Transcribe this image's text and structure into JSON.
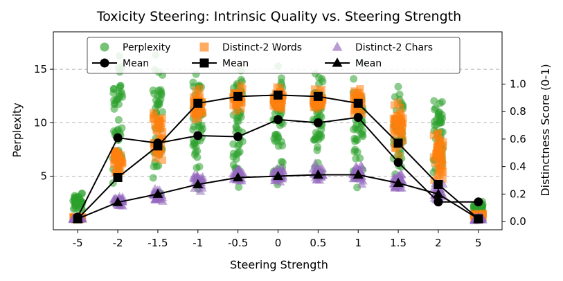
{
  "chart_data": {
    "type": "scatter",
    "title": "Toxicity Steering: Intrinsic Quality vs. Steering Strength",
    "xlabel": "Steering Strength",
    "ylabel_left": "Perplexity",
    "ylabel_right": "Distinctness Score (0-1)",
    "categories": [
      "-5",
      "-2",
      "-1.5",
      "-1",
      "-0.5",
      "0",
      "0.5",
      "1",
      "1.5",
      "2",
      "5"
    ],
    "ylim_left": [
      0,
      18.5
    ],
    "yticks_left": [
      5,
      10,
      15
    ],
    "ylim_right": [
      -0.06,
      1.38
    ],
    "yticks_right": [
      "0.0",
      "0.2",
      "0.4",
      "0.6",
      "0.8",
      "1.0"
    ],
    "grid": "horizontal dashed",
    "legend_position": "top",
    "colors": {
      "perplexity": "#2ca02c",
      "distinct2_words": "#ff7f0e",
      "distinct2_chars": "#9467bd",
      "mean": "#000000"
    },
    "legend": [
      {
        "label": "Perplexity",
        "marker": "circle",
        "color": "#2ca02c"
      },
      {
        "label": "Distinct-2 Words",
        "marker": "square",
        "color": "#ff7f0e"
      },
      {
        "label": "Distinct-2 Chars",
        "marker": "triangle",
        "color": "#9467bd"
      },
      {
        "label": "Mean",
        "marker": "circle",
        "color": "#000000"
      },
      {
        "label": "Mean",
        "marker": "square",
        "color": "#000000"
      },
      {
        "label": "Mean",
        "marker": "triangle",
        "color": "#000000"
      }
    ],
    "scatter_ranges": {
      "perplexity": [
        [
          1.5,
          3.6
        ],
        [
          3.0,
          18.0
        ],
        [
          2.5,
          17.5
        ],
        [
          2.5,
          17.0
        ],
        [
          3.0,
          17.0
        ],
        [
          3.0,
          17.0
        ],
        [
          3.0,
          17.0
        ],
        [
          2.5,
          17.0
        ],
        [
          2.0,
          16.5
        ],
        [
          2.5,
          14.5
        ],
        [
          1.0,
          3.0
        ]
      ],
      "distinct2_words": [
        [
          0.01,
          0.04
        ],
        [
          0.3,
          0.62
        ],
        [
          0.3,
          0.88
        ],
        [
          0.7,
          1.0
        ],
        [
          0.78,
          1.0
        ],
        [
          0.78,
          1.0
        ],
        [
          0.78,
          1.0
        ],
        [
          0.75,
          1.0
        ],
        [
          0.4,
          0.95
        ],
        [
          0.2,
          0.75
        ],
        [
          0.0,
          0.08
        ]
      ],
      "distinct2_chars": [
        [
          0.01,
          0.03
        ],
        [
          0.1,
          0.2
        ],
        [
          0.12,
          0.28
        ],
        [
          0.2,
          0.38
        ],
        [
          0.25,
          0.42
        ],
        [
          0.26,
          0.42
        ],
        [
          0.27,
          0.43
        ],
        [
          0.25,
          0.45
        ],
        [
          0.2,
          0.38
        ],
        [
          0.12,
          0.3
        ],
        [
          0.0,
          0.04
        ]
      ]
    },
    "series": [
      {
        "name": "Mean Perplexity",
        "marker": "circle",
        "values": [
          1.2,
          8.6,
          8.1,
          8.8,
          8.7,
          10.3,
          10.0,
          10.5,
          6.3,
          2.6,
          2.6
        ]
      },
      {
        "name": "Mean Distinct-2 Words",
        "marker": "square",
        "values": [
          0.02,
          0.32,
          0.55,
          0.86,
          0.91,
          0.92,
          0.91,
          0.86,
          0.57,
          0.27,
          0.02
        ]
      },
      {
        "name": "Mean Distinct-2 Chars",
        "marker": "triangle",
        "values": [
          0.02,
          0.14,
          0.2,
          0.27,
          0.32,
          0.33,
          0.34,
          0.34,
          0.28,
          0.2,
          0.02
        ]
      }
    ]
  }
}
